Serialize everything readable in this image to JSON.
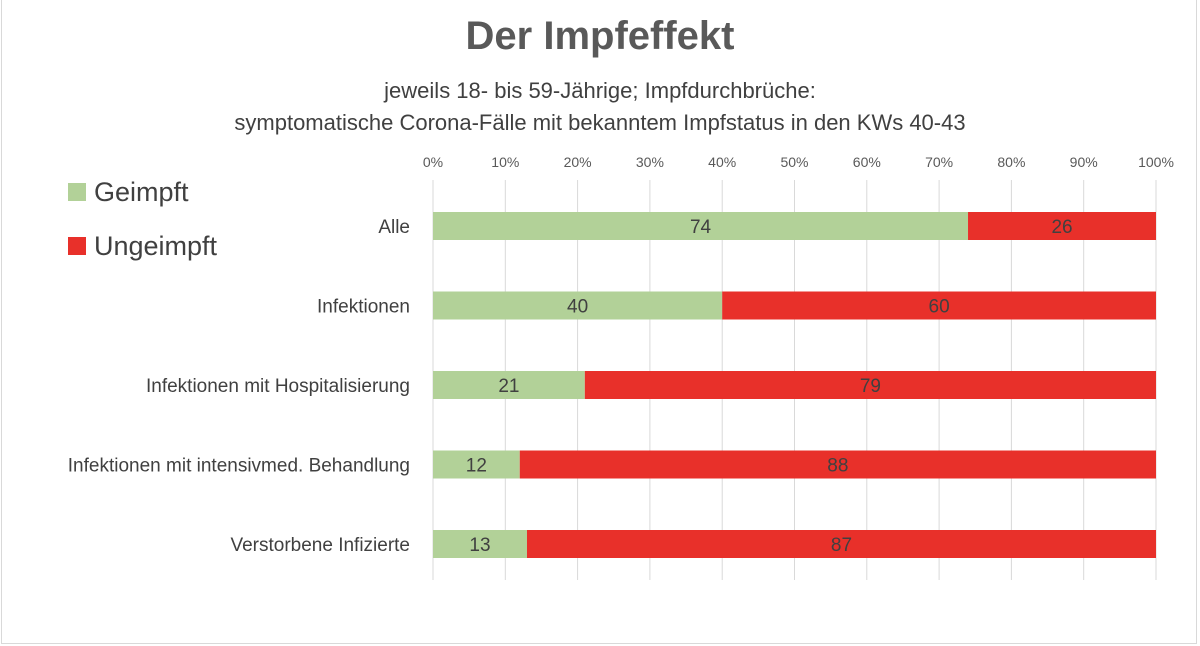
{
  "chart_data": {
    "type": "bar",
    "orientation": "horizontal",
    "stacked": "percent",
    "title": "Der Impfeffekt",
    "subtitle": [
      "jeweils 18- bis 59-Jährige; Impfdurchbrüche:",
      "symptomatische Corona-Fälle mit bekanntem Impfstatus in den KWs 40-43"
    ],
    "categories": [
      "Alle",
      "Infektionen",
      "Infektionen mit Hospitalisierung",
      "Infektionen mit intensivmed. Behandlung",
      "Verstorbene Infizierte"
    ],
    "series": [
      {
        "name": "Geimpft",
        "values": [
          74,
          40,
          21,
          12,
          13
        ],
        "color": "#b2d198"
      },
      {
        "name": "Ungeimpft",
        "values": [
          26,
          60,
          79,
          88,
          87
        ],
        "color": "#e8302a"
      }
    ],
    "x_ticks": [
      "0%",
      "10%",
      "20%",
      "30%",
      "40%",
      "50%",
      "60%",
      "70%",
      "80%",
      "90%",
      "100%"
    ],
    "xlim": [
      0,
      100
    ],
    "x_axis_position": "top",
    "grid": true,
    "legend_position": "top-left"
  }
}
